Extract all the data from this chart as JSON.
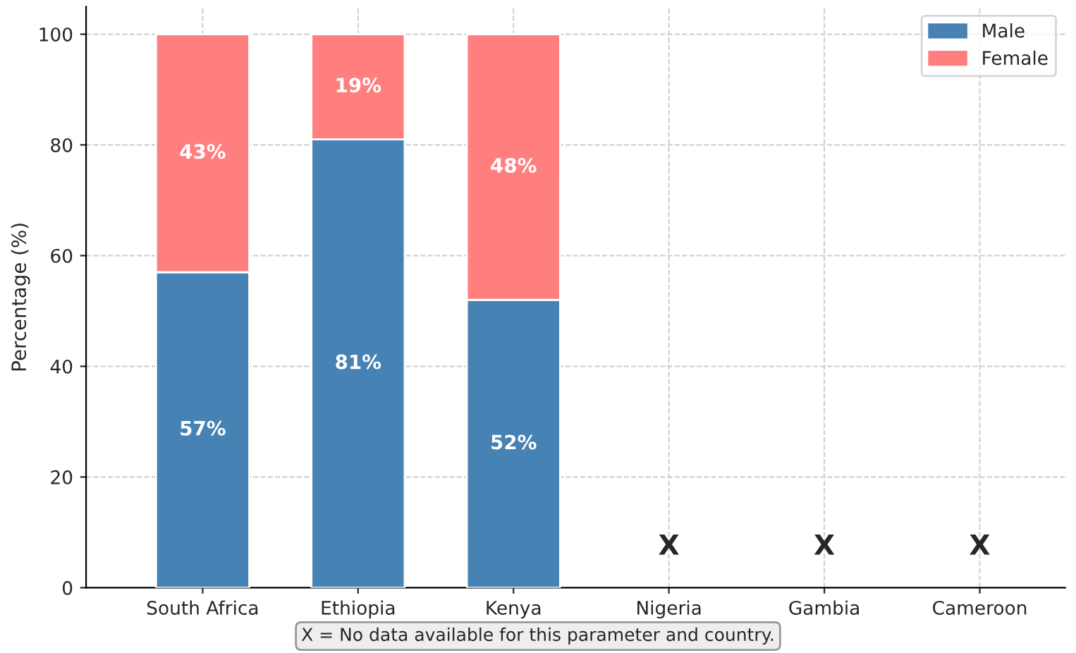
{
  "chart_data": {
    "type": "bar",
    "stacked": true,
    "ylabel": "Percentage (%)",
    "categories": [
      "South Africa",
      "Ethiopia",
      "Kenya",
      "Nigeria",
      "Gambia",
      "Cameroon"
    ],
    "series": [
      {
        "name": "Male",
        "color": "#4682b4",
        "values": [
          57,
          81,
          52,
          null,
          null,
          null
        ],
        "value_labels": [
          "57%",
          "81%",
          "52%",
          null,
          null,
          null
        ]
      },
      {
        "name": "Female",
        "color": "#ff7f7f",
        "values": [
          43,
          19,
          48,
          null,
          null,
          null
        ],
        "value_labels": [
          "43%",
          "19%",
          "48%",
          null,
          null,
          null
        ]
      }
    ],
    "ylim": [
      0,
      105
    ],
    "yticks": [
      0,
      20,
      40,
      60,
      80,
      100
    ],
    "grid": true,
    "legend": "top right",
    "annotations": [
      "X",
      "X",
      "X",
      "X = No data available for this parameter and country."
    ]
  }
}
